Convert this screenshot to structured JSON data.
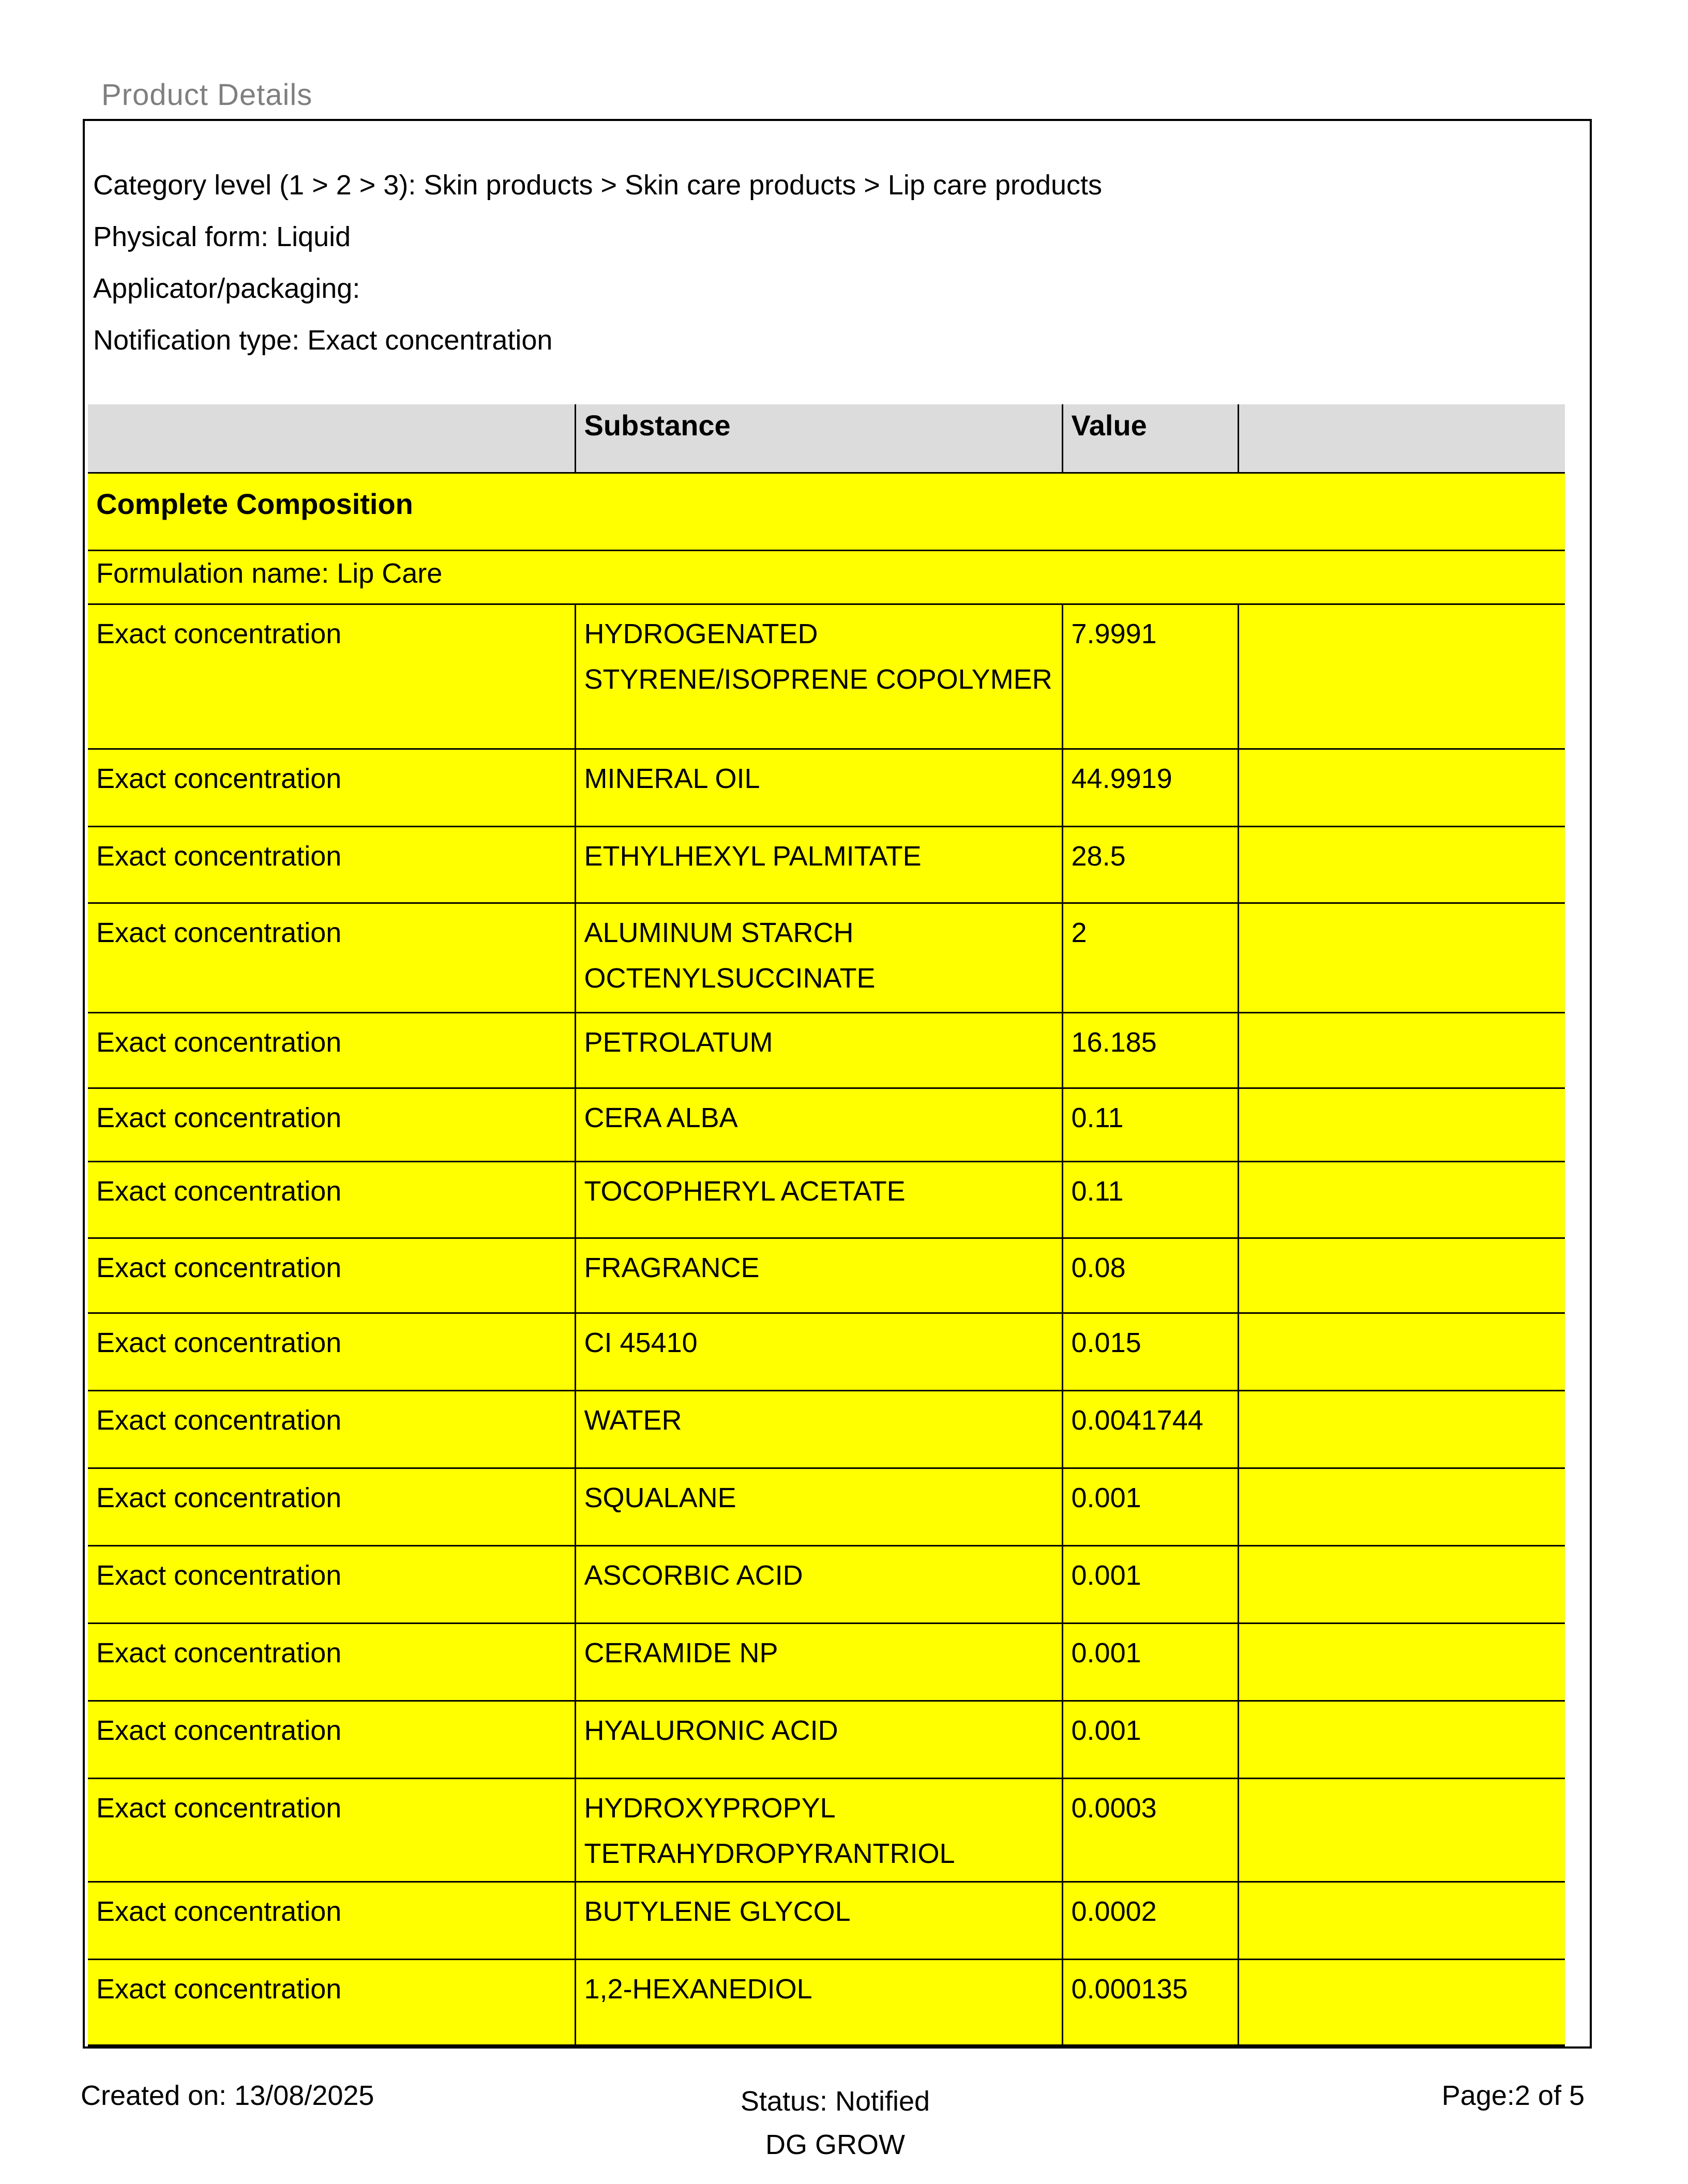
{
  "page_title": "Product Details",
  "product": {
    "category_line": "Category level (1 > 2 > 3): Skin products > Skin care products > Lip care products",
    "physical_form_line": "Physical form: Liquid",
    "applicator_line": "Applicator/packaging:",
    "notification_line": "Notification type: Exact concentration"
  },
  "table": {
    "columns": [
      "",
      "Substance",
      "Value",
      ""
    ],
    "section_header": "Complete Composition",
    "formulation_name_line": "Formulation name: Lip Care",
    "rows": [
      {
        "type": "Exact concentration",
        "substance": "HYDROGENATED STYRENE/ISOPRENE COPOLYMER",
        "value": "7.9991"
      },
      {
        "type": "Exact concentration",
        "substance": "MINERAL OIL",
        "value": "44.9919"
      },
      {
        "type": "Exact concentration",
        "substance": "ETHYLHEXYL PALMITATE",
        "value": "28.5"
      },
      {
        "type": "Exact concentration",
        "substance": "ALUMINUM STARCH OCTENYLSUCCINATE",
        "value": "2"
      },
      {
        "type": "Exact concentration",
        "substance": "PETROLATUM",
        "value": "16.185"
      },
      {
        "type": "Exact concentration",
        "substance": "CERA ALBA",
        "value": "0.11"
      },
      {
        "type": "Exact concentration",
        "substance": "TOCOPHERYL ACETATE",
        "value": "0.11"
      },
      {
        "type": "Exact concentration",
        "substance": "FRAGRANCE",
        "value": "0.08"
      },
      {
        "type": "Exact concentration",
        "substance": "CI 45410",
        "value": "0.015"
      },
      {
        "type": "Exact concentration",
        "substance": "WATER",
        "value": "0.0041744"
      },
      {
        "type": "Exact concentration",
        "substance": "SQUALANE",
        "value": "0.001"
      },
      {
        "type": "Exact concentration",
        "substance": "ASCORBIC ACID",
        "value": "0.001"
      },
      {
        "type": "Exact concentration",
        "substance": "CERAMIDE NP",
        "value": "0.001"
      },
      {
        "type": "Exact concentration",
        "substance": "HYALURONIC ACID",
        "value": "0.001"
      },
      {
        "type": "Exact concentration",
        "substance": "HYDROXYPROPYL TETRAHYDROPYRANTRIOL",
        "value": "0.0003"
      },
      {
        "type": "Exact concentration",
        "substance": "BUTYLENE GLYCOL",
        "value": "0.0002"
      },
      {
        "type": "Exact concentration",
        "substance": "1,2-HEXANEDIOL",
        "value": "0.000135"
      }
    ]
  },
  "footer": {
    "created_on": "Created on: 13/08/2025",
    "status": "Status: Notified",
    "org": "DG GROW",
    "page": "Page:2 of 5"
  },
  "colors": {
    "row_yellow": "#FFFF00",
    "header_gray": "#DCDCDC",
    "title_gray": "#7F7F7F",
    "border_black": "#000000"
  }
}
